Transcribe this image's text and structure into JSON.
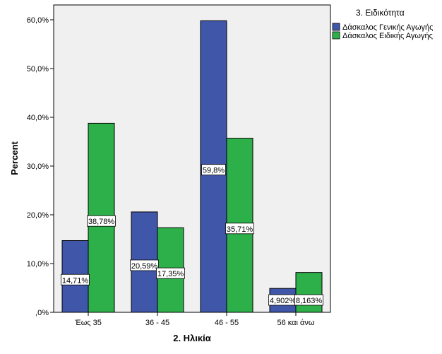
{
  "chart_data": {
    "type": "bar",
    "xlabel": "2. Ηλικία",
    "ylabel": "Percent",
    "ylim": [
      0,
      65
    ],
    "yticks": [
      ",0%",
      "10,0%",
      "20,0%",
      "30,0%",
      "40,0%",
      "50,0%",
      "60,0%"
    ],
    "categories": [
      "Έως 35",
      "36 - 45",
      "46 - 55",
      "56 και άνω"
    ],
    "legend_title": "3. Ειδικότητα",
    "legend_position": "top-right",
    "series": [
      {
        "name": "Δάσκαλος Γενικής Αγωγής",
        "color": "#3f56a9",
        "values": [
          14.71,
          20.59,
          59.8,
          4.902
        ],
        "labels": [
          "14,71%",
          "20,59%",
          "59,8%",
          "4,902%"
        ]
      },
      {
        "name": "Δάσκαλος Ειδικής Αγωγής",
        "color": "#2db04a",
        "values": [
          38.78,
          17.35,
          35.71,
          8.163
        ],
        "labels": [
          "38,78%",
          "17,35%",
          "35,71%",
          "8,163%"
        ]
      }
    ],
    "plot_background": "#f0f0f0"
  }
}
